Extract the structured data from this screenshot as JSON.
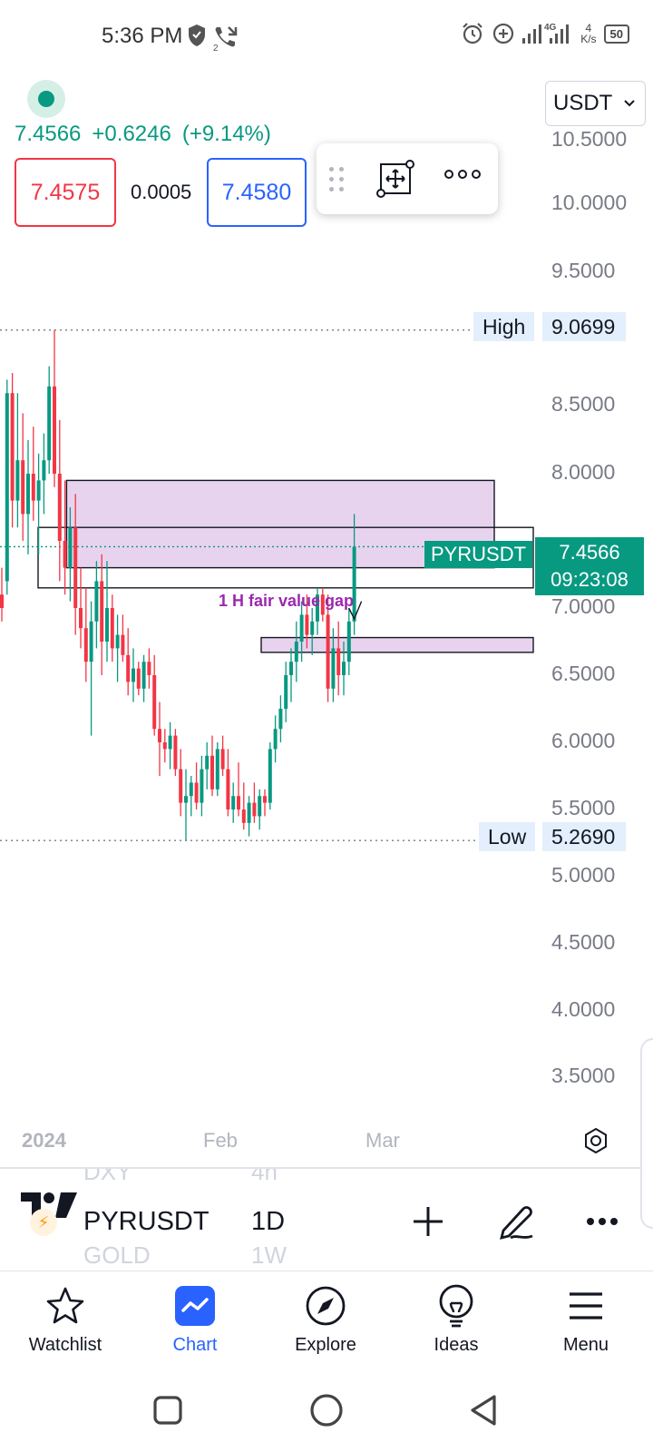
{
  "status_bar": {
    "time": "5:36 PM",
    "call_badge": "2",
    "net_type": "4G",
    "speed_value": "4",
    "speed_unit": "K/s",
    "battery": "50",
    "icons": [
      "shield-icon",
      "missed-call-icon",
      "alarm-icon",
      "data-saver-icon",
      "signal-icon",
      "battery-icon"
    ]
  },
  "header": {
    "last_price": "7.4566",
    "change": "+0.6246",
    "change_pct": "(+9.14%)",
    "bid": "7.4575",
    "spread": "0.0005",
    "ask": "7.4580",
    "currency": "USDT",
    "up_color": "#089981",
    "down_color": "#f23645",
    "accent": "#2962ff"
  },
  "chart": {
    "price_axis": [
      "10.5000",
      "10.0000",
      "9.5000",
      "8.5000",
      "8.0000",
      "7.0000",
      "6.5000",
      "6.0000",
      "5.5000",
      "5.0000",
      "4.5000",
      "4.0000",
      "3.5000"
    ],
    "high_label": "High",
    "high_value": "9.0699",
    "low_label": "Low",
    "low_value": "5.2690",
    "symbol_tag": "PYRUSDT",
    "price_tag": "7.4566",
    "countdown": "09:23:08",
    "annotation": "1 H fair value gap",
    "zone_color": "#e8d3ef",
    "x_axis": {
      "year": "2024",
      "feb": "Feb",
      "mar": "Mar"
    }
  },
  "chart_data": {
    "type": "candlestick",
    "symbol": "PYRUSDT",
    "timeframe": "1D",
    "ylim": [
      3.3,
      10.6
    ],
    "high": 9.0699,
    "low": 5.269,
    "last": 7.4566,
    "candles": [
      [
        7.1,
        7.3,
        6.9,
        7.0
      ],
      [
        7.2,
        8.7,
        7.1,
        8.6
      ],
      [
        8.6,
        8.75,
        7.6,
        7.8
      ],
      [
        7.8,
        8.6,
        7.6,
        8.1
      ],
      [
        8.1,
        8.45,
        7.5,
        7.7
      ],
      [
        7.7,
        8.25,
        7.4,
        8.0
      ],
      [
        8.0,
        8.35,
        7.65,
        7.8
      ],
      [
        7.8,
        8.15,
        7.4,
        7.95
      ],
      [
        7.95,
        8.3,
        7.7,
        8.1
      ],
      [
        8.1,
        8.8,
        8.0,
        8.65
      ],
      [
        8.65,
        9.07,
        7.9,
        8.0
      ],
      [
        8.0,
        8.4,
        7.2,
        7.5
      ],
      [
        7.5,
        7.95,
        7.1,
        7.3
      ],
      [
        7.3,
        7.75,
        7.05,
        7.6
      ],
      [
        7.6,
        7.85,
        6.8,
        7.0
      ],
      [
        7.0,
        7.3,
        6.7,
        6.85
      ],
      [
        6.85,
        7.15,
        6.45,
        6.6
      ],
      [
        6.6,
        7.05,
        6.05,
        6.9
      ],
      [
        6.9,
        7.35,
        6.7,
        7.2
      ],
      [
        7.2,
        7.4,
        6.5,
        6.75
      ],
      [
        6.75,
        7.35,
        6.6,
        7.0
      ],
      [
        7.0,
        7.1,
        6.6,
        6.7
      ],
      [
        6.7,
        6.95,
        6.45,
        6.8
      ],
      [
        6.8,
        6.95,
        6.6,
        6.65
      ],
      [
        6.65,
        6.85,
        6.35,
        6.45
      ],
      [
        6.45,
        6.7,
        6.3,
        6.55
      ],
      [
        6.55,
        6.6,
        6.35,
        6.4
      ],
      [
        6.4,
        6.65,
        6.3,
        6.6
      ],
      [
        6.6,
        6.7,
        6.4,
        6.5
      ],
      [
        6.5,
        6.65,
        6.05,
        6.1
      ],
      [
        6.1,
        6.3,
        5.75,
        6.0
      ],
      [
        6.0,
        6.1,
        5.85,
        5.95
      ],
      [
        5.95,
        6.15,
        5.8,
        6.05
      ],
      [
        6.05,
        6.1,
        5.75,
        5.8
      ],
      [
        5.8,
        5.95,
        5.45,
        5.55
      ],
      [
        5.55,
        5.8,
        5.27,
        5.6
      ],
      [
        5.6,
        5.75,
        5.45,
        5.7
      ],
      [
        5.7,
        5.85,
        5.5,
        5.55
      ],
      [
        5.55,
        5.9,
        5.45,
        5.8
      ],
      [
        5.8,
        6.0,
        5.65,
        5.9
      ],
      [
        5.9,
        6.05,
        5.6,
        5.65
      ],
      [
        5.65,
        6.0,
        5.6,
        5.95
      ],
      [
        5.95,
        6.05,
        5.75,
        5.8
      ],
      [
        5.8,
        5.95,
        5.45,
        5.5
      ],
      [
        5.5,
        5.7,
        5.4,
        5.6
      ],
      [
        5.6,
        5.85,
        5.45,
        5.5
      ],
      [
        5.5,
        5.7,
        5.35,
        5.4
      ],
      [
        5.4,
        5.6,
        5.3,
        5.55
      ],
      [
        5.55,
        5.7,
        5.4,
        5.45
      ],
      [
        5.45,
        5.65,
        5.35,
        5.6
      ],
      [
        5.6,
        5.65,
        5.45,
        5.55
      ],
      [
        5.55,
        6.0,
        5.5,
        5.95
      ],
      [
        5.95,
        6.2,
        5.85,
        6.1
      ],
      [
        6.1,
        6.35,
        6.0,
        6.25
      ],
      [
        6.25,
        6.6,
        6.15,
        6.5
      ],
      [
        6.5,
        6.7,
        6.3,
        6.6
      ],
      [
        6.6,
        6.9,
        6.45,
        6.75
      ],
      [
        6.75,
        7.05,
        6.6,
        6.95
      ],
      [
        6.95,
        7.1,
        6.7,
        6.8
      ],
      [
        6.8,
        7.0,
        6.65,
        6.9
      ],
      [
        6.9,
        7.15,
        6.8,
        7.1
      ],
      [
        7.1,
        7.15,
        6.9,
        6.95
      ],
      [
        6.95,
        7.1,
        6.3,
        6.4
      ],
      [
        6.4,
        6.85,
        6.3,
        6.7
      ],
      [
        6.7,
        6.9,
        6.35,
        6.5
      ],
      [
        6.5,
        6.75,
        6.35,
        6.6
      ],
      [
        6.6,
        7.0,
        6.5,
        6.9
      ],
      [
        6.9,
        7.7,
        6.8,
        7.4566
      ]
    ],
    "zones": [
      {
        "from_index": 13,
        "to_index": 74,
        "top": 7.95,
        "bottom": 7.3
      },
      {
        "from_index": 50,
        "to_index": 80,
        "top": 6.78,
        "bottom": 6.67
      }
    ]
  },
  "symbol_bar": {
    "symbol": "PYRUSDT",
    "timeframe": "1D",
    "ghost_top_symbol": "DXY",
    "ghost_top_tf": "4h",
    "ghost_bottom_symbol": "GOLD",
    "ghost_bottom_tf": "1W"
  },
  "bottom_nav": {
    "items": [
      {
        "label": "Watchlist",
        "icon": "star-icon"
      },
      {
        "label": "Chart",
        "icon": "chart-icon"
      },
      {
        "label": "Explore",
        "icon": "compass-icon"
      },
      {
        "label": "Ideas",
        "icon": "lightbulb-icon"
      },
      {
        "label": "Menu",
        "icon": "menu-icon"
      }
    ],
    "active": "Chart"
  }
}
